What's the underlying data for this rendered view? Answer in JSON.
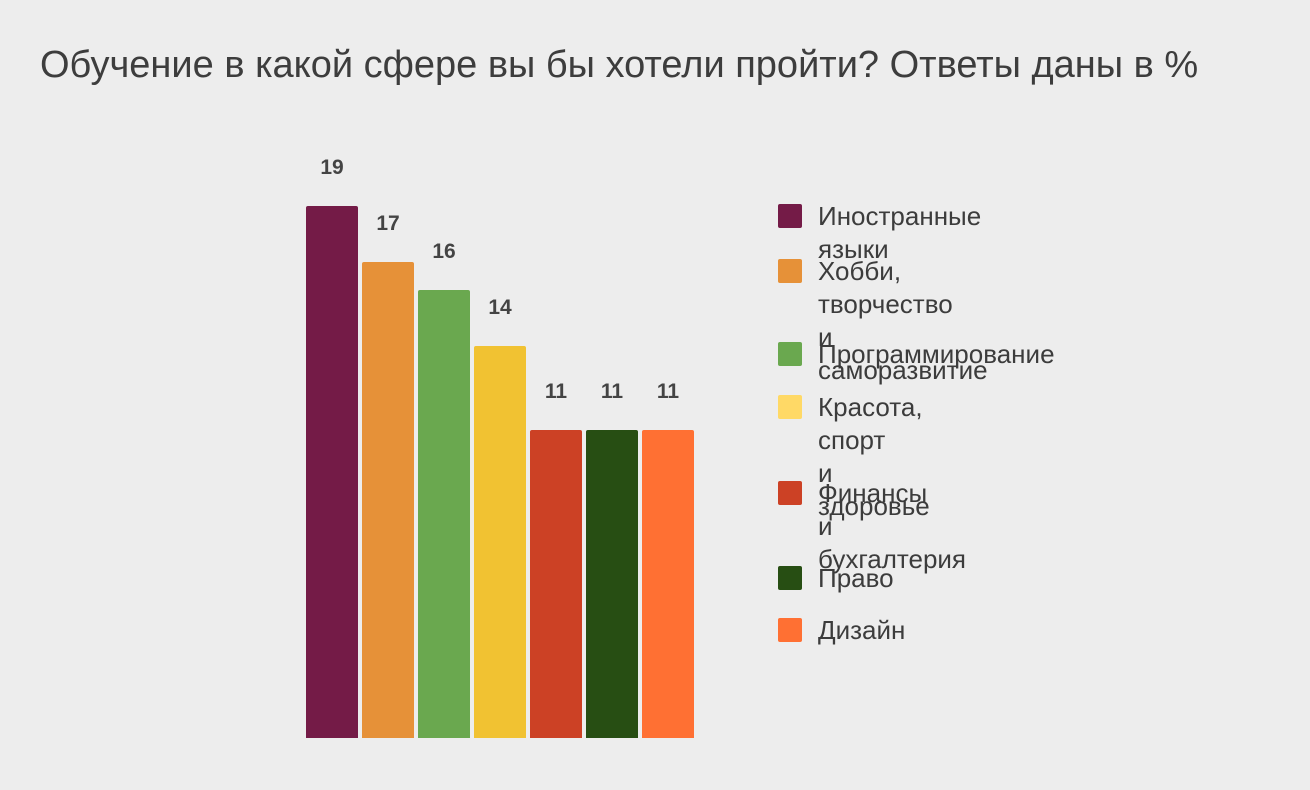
{
  "title": "Обучение в какой сфере вы бы хотели пройти? Ответы даны в %",
  "chart_data": {
    "type": "bar",
    "title": "Обучение в какой сфере вы бы хотели пройти? Ответы даны в %",
    "categories": [
      "Иностранные языки",
      "Хобби, творчество\nи саморазвитие",
      "Программирование",
      "Красота, спорт\nи здоровье",
      "Финансы\nи бухгалтерия",
      "Право",
      "Дизайн"
    ],
    "values": [
      19,
      17,
      16,
      14,
      11,
      11,
      11
    ],
    "value_labels": [
      "19",
      "17",
      "16",
      "14",
      "11",
      "11",
      "11"
    ],
    "colors": [
      "#741b47",
      "#e69138",
      "#6aa84f",
      "#f1c232",
      "#cc4125",
      "#274e13",
      "#ff7033"
    ],
    "legend_colors": [
      "#741b47",
      "#e69138",
      "#6aa84f",
      "#ffd966",
      "#cc4125",
      "#274e13",
      "#ff7033"
    ],
    "ylim": [
      0,
      19
    ],
    "grid": false,
    "legend_position": "right",
    "xlabel": "",
    "ylabel": ""
  }
}
